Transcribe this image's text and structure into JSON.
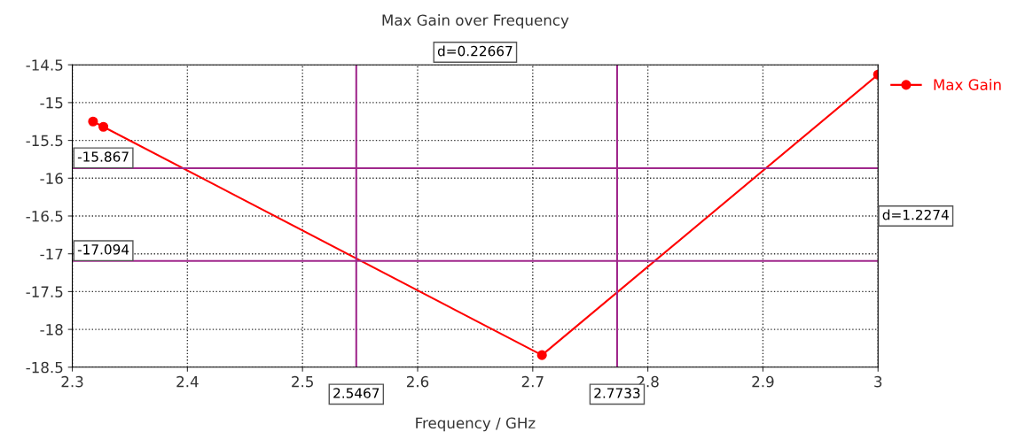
{
  "chart_data": {
    "type": "line",
    "title": "Max Gain over Frequency",
    "xlabel": "Frequency / GHz",
    "series": [
      {
        "name": "Max Gain",
        "color": "#ff0000",
        "x": [
          2.318,
          2.327,
          2.708,
          3.0
        ],
        "values": [
          -15.25,
          -15.32,
          -18.34,
          -14.63
        ]
      }
    ],
    "xlim": [
      2.3,
      3.0
    ],
    "xticks": [
      2.3,
      2.4,
      2.5,
      2.6,
      2.7,
      2.8,
      2.9,
      3
    ],
    "ylim": [
      -18.5,
      -14.5
    ],
    "yticks": [
      -18.5,
      -18,
      -17.5,
      -17,
      -16.5,
      -16,
      -15.5,
      -15,
      -14.5
    ],
    "grid": true,
    "marker": "circle",
    "line_style": "solid",
    "legend": "right",
    "ref_lines": [
      {
        "axis": "y",
        "value": -15.867,
        "label": "-15.867",
        "color": "#a0288c"
      },
      {
        "axis": "y",
        "value": -17.094,
        "label": "-17.094",
        "color": "#a0288c"
      },
      {
        "axis": "x",
        "value": 2.5467,
        "label": "2.5467",
        "color": "#a0288c"
      },
      {
        "axis": "x",
        "value": 2.7733,
        "label": "2.7733",
        "color": "#a0288c"
      }
    ],
    "annotations": [
      "d=0.22667",
      "d=1.2274"
    ]
  }
}
